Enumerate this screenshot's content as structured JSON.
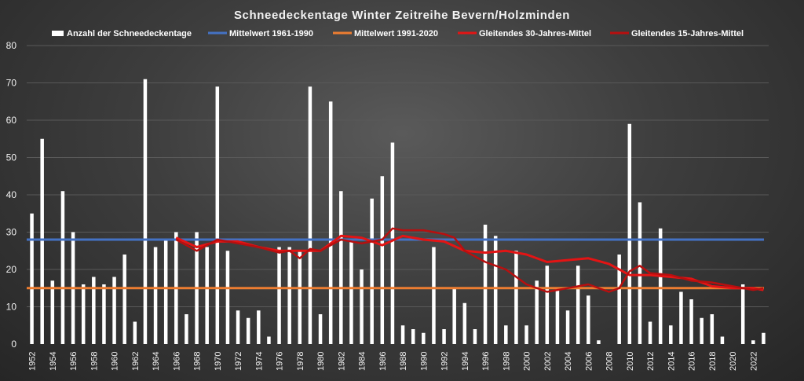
{
  "chart_data": {
    "type": "bar",
    "title": "Schneedeckentage  Winter Zeitreihe Bevern/Holzminden",
    "xlabel": "",
    "ylabel": "",
    "ylim": [
      0,
      80
    ],
    "yticks": [
      0,
      10,
      20,
      30,
      40,
      50,
      60,
      70,
      80
    ],
    "grid": true,
    "legend_position": "top",
    "x_start": 1952,
    "x_end": 2023,
    "x_tick_labels": [
      "1952",
      "1954",
      "1956",
      "1958",
      "1960",
      "1962",
      "1964",
      "1966",
      "1968",
      "1970",
      "1972",
      "1974",
      "1976",
      "1978",
      "1980",
      "1982",
      "1984",
      "1986",
      "1988",
      "1990",
      "1992",
      "1994",
      "1996",
      "1998",
      "2000",
      "2002",
      "2004",
      "2006",
      "2008",
      "2010",
      "2012",
      "2014",
      "2016",
      "2018",
      "2020",
      "2022"
    ],
    "colors": {
      "bars": "#ffffff",
      "mean_1961_1990": "#4472c4",
      "mean_1991_2020": "#ed7d31",
      "ma30": "#e31414",
      "ma15": "#b80f0f",
      "grid": "#595959",
      "text": "#f2f2f2"
    },
    "series": [
      {
        "name": "Anzahl der Schneedeckentage",
        "kind": "bar",
        "values": [
          35,
          55,
          17,
          41,
          30,
          16,
          18,
          16,
          18,
          24,
          6,
          71,
          26,
          28,
          30,
          8,
          30,
          26,
          69,
          25,
          9,
          7,
          9,
          2,
          26,
          26,
          25,
          69,
          8,
          65,
          41,
          28,
          20,
          39,
          45,
          54,
          5,
          4,
          3,
          26,
          4,
          15,
          11,
          4,
          32,
          29,
          5,
          25,
          5,
          17,
          21,
          15,
          9,
          21,
          13,
          1,
          0,
          24,
          59,
          38,
          6,
          31,
          5,
          14,
          12,
          7,
          8,
          2,
          0,
          16,
          1,
          3
        ]
      },
      {
        "name": "Mittelwert 1961-1990",
        "kind": "hline",
        "value": 28
      },
      {
        "name": "Mittelwert 1991-2020",
        "kind": "hline",
        "value": 15
      },
      {
        "name": "Gleitendes 30-Jahres-Mittel",
        "kind": "line",
        "x": [
          1966,
          1968,
          1970,
          1972,
          1974,
          1976,
          1978,
          1980,
          1982,
          1984,
          1986,
          1988,
          1990,
          1992,
          1994,
          1996,
          1998,
          2000,
          2002,
          2004,
          2006,
          2008,
          2010,
          2012,
          2014,
          2016,
          2018,
          2020,
          2022,
          2023
        ],
        "values": [
          28.5,
          26,
          27.5,
          27.5,
          26,
          25,
          25,
          25,
          29,
          28.5,
          26.5,
          29,
          28,
          27.5,
          25,
          24.5,
          25,
          24,
          22,
          22.5,
          23,
          21.5,
          18.5,
          18.5,
          18,
          17.5,
          15.5,
          15,
          15,
          14.5
        ]
      },
      {
        "name": "Gleitendes 15-Jahres-Mittel",
        "kind": "line",
        "x": [
          1966,
          1968,
          1970,
          1972,
          1974,
          1976,
          1977,
          1978,
          1979,
          1980,
          1982,
          1984,
          1985,
          1986,
          1987,
          1988,
          1990,
          1992,
          1993,
          1994,
          1996,
          1998,
          2000,
          2002,
          2003,
          2004,
          2006,
          2008,
          2009,
          2010,
          2011,
          2012,
          2014,
          2016,
          2018,
          2020,
          2022,
          2023
        ],
        "values": [
          28,
          25,
          28,
          27,
          26,
          24.5,
          25,
          23,
          25.5,
          25,
          28,
          27,
          27.5,
          28,
          31,
          30.5,
          30.5,
          29.5,
          28.5,
          25,
          22,
          20,
          16,
          14,
          14.5,
          15,
          16,
          14,
          15,
          19.5,
          21,
          19,
          18.5,
          17,
          16.5,
          15.5,
          14.5,
          15
        ]
      }
    ]
  }
}
